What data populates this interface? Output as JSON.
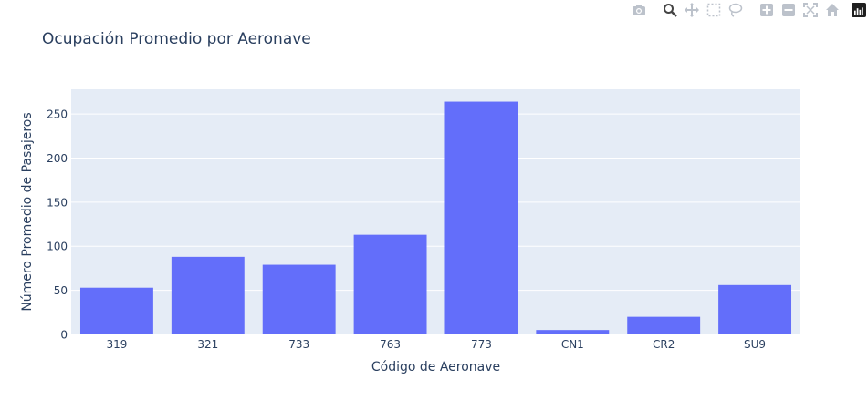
{
  "modebar": {
    "icons": [
      "camera-icon",
      "zoom-icon",
      "pan-icon",
      "box-select-icon",
      "lasso-icon",
      "zoom-in-icon",
      "zoom-out-icon",
      "autoscale-icon",
      "reset-axes-icon",
      "plotly-logo-icon"
    ]
  },
  "colors": {
    "bar": "#636efa",
    "plot_bg": "#e5ecf6",
    "grid": "#ffffff",
    "text": "#2a3f5f",
    "icon": "#bcc2cb"
  },
  "chart_data": {
    "type": "bar",
    "title": "Ocupación Promedio por Aeronave",
    "xlabel": "Código de Aeronave",
    "ylabel": "Número Promedio de Pasajeros",
    "categories": [
      "319",
      "321",
      "733",
      "763",
      "773",
      "CN1",
      "CR2",
      "SU9"
    ],
    "values": [
      53,
      88,
      79,
      113,
      264,
      5,
      20,
      56
    ],
    "ylim": [
      0,
      278
    ],
    "yticks": [
      0,
      50,
      100,
      150,
      200,
      250
    ],
    "grid": true,
    "legend": "none"
  }
}
